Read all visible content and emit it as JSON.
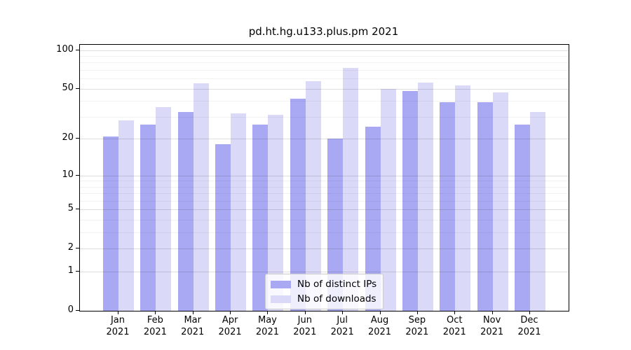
{
  "chart_data": {
    "type": "bar",
    "title": "pd.ht.hg.u133.plus.pm 2021",
    "categories": [
      "Jan",
      "Feb",
      "Mar",
      "Apr",
      "May",
      "Jun",
      "Jul",
      "Aug",
      "Sep",
      "Oct",
      "Nov",
      "Dec"
    ],
    "year": "2021",
    "series": [
      {
        "name": "Nb of distinct IPs",
        "color": "#a9a9f3",
        "values": [
          21,
          26,
          33,
          18,
          26,
          42,
          20,
          25,
          48,
          39,
          39,
          26
        ]
      },
      {
        "name": "Nb of downloads",
        "color": "#dadaf8",
        "values": [
          28,
          36,
          55,
          32,
          31,
          57,
          73,
          50,
          56,
          53,
          47,
          33
        ]
      }
    ],
    "yscale": "log(value+1)",
    "yticks": [
      100,
      50,
      20,
      10,
      5,
      2,
      1,
      0
    ],
    "minor_yticks": [
      3,
      4,
      6,
      7,
      8,
      9,
      30,
      40,
      60,
      70,
      80,
      90
    ],
    "ylim": [
      0,
      110
    ],
    "grid": true,
    "legend_position": "bottom-center"
  }
}
